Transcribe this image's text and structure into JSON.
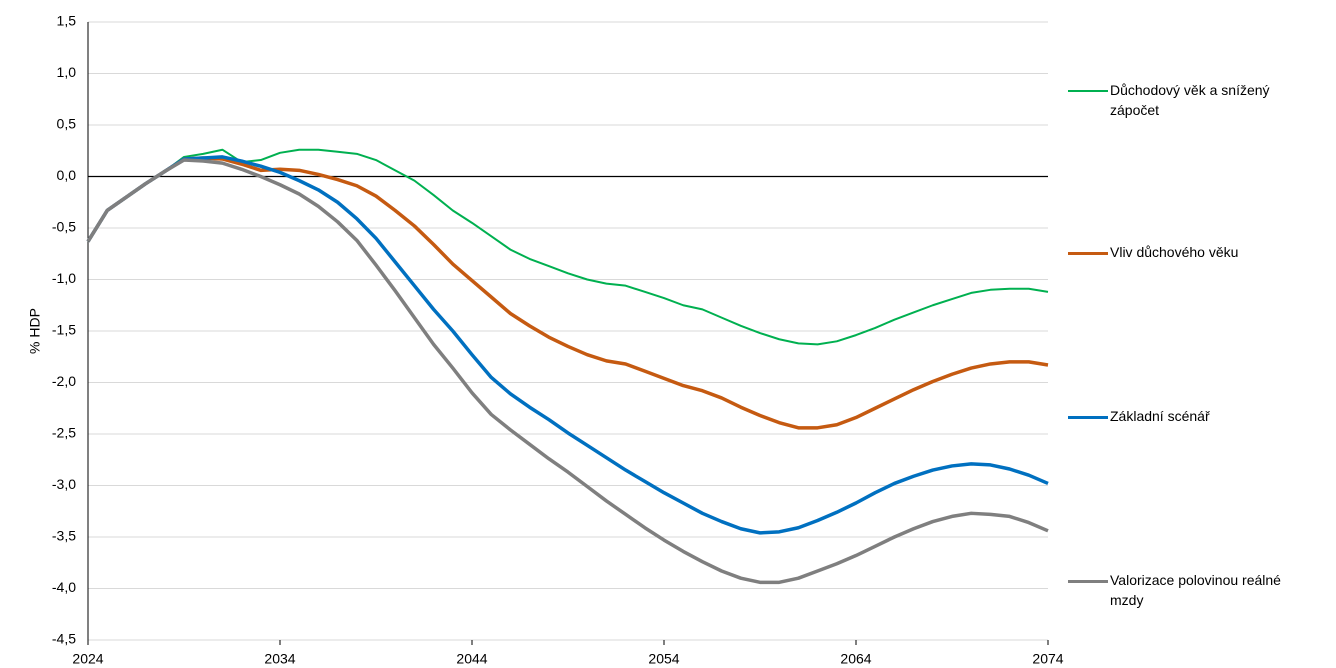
{
  "chart_data": {
    "type": "line",
    "y_label": "% HDP",
    "x": [
      2024,
      2025,
      2026,
      2027,
      2028,
      2029,
      2030,
      2031,
      2032,
      2033,
      2034,
      2035,
      2036,
      2037,
      2038,
      2039,
      2040,
      2041,
      2042,
      2043,
      2044,
      2045,
      2046,
      2047,
      2048,
      2049,
      2050,
      2051,
      2052,
      2053,
      2054,
      2055,
      2056,
      2057,
      2058,
      2059,
      2060,
      2061,
      2062,
      2063,
      2064,
      2065,
      2066,
      2067,
      2068,
      2069,
      2070,
      2071,
      2072,
      2073,
      2074
    ],
    "xlim": [
      2024,
      2074
    ],
    "xticks": [
      2024,
      2034,
      2044,
      2054,
      2064,
      2074
    ],
    "ylim": [
      -4.5,
      1.5
    ],
    "yticks": [
      {
        "value": 1.5,
        "label": "1,5"
      },
      {
        "value": 1,
        "label": "1,0"
      },
      {
        "value": 0.5,
        "label": "0,5"
      },
      {
        "value": 0,
        "label": "0,0"
      },
      {
        "value": -0.5,
        "label": "-0,5"
      },
      {
        "value": -1,
        "label": "-1,0"
      },
      {
        "value": -1.5,
        "label": "-1,5"
      },
      {
        "value": -2,
        "label": "-2,0"
      },
      {
        "value": -2.5,
        "label": "-2,5"
      },
      {
        "value": -3,
        "label": "-3,0"
      },
      {
        "value": -3.5,
        "label": "-3,5"
      },
      {
        "value": -4,
        "label": "-4,0"
      },
      {
        "value": -4.5,
        "label": "-4,5"
      }
    ],
    "grid": true,
    "legend": "right",
    "series": [
      {
        "name": "Důchodový věk a snížený zápočet",
        "color": "#00b050",
        "values": [
          -0.63,
          -0.33,
          -0.2,
          -0.07,
          0.05,
          0.19,
          0.22,
          0.26,
          0.14,
          0.16,
          0.23,
          0.26,
          0.26,
          0.24,
          0.22,
          0.16,
          0.06,
          -0.04,
          -0.18,
          -0.33,
          -0.45,
          -0.58,
          -0.71,
          -0.8,
          -0.87,
          -0.94,
          -1,
          -1.04,
          -1.06,
          -1.12,
          -1.18,
          -1.25,
          -1.29,
          -1.37,
          -1.45,
          -1.52,
          -1.58,
          -1.62,
          -1.63,
          -1.6,
          -1.54,
          -1.47,
          -1.39,
          -1.32,
          -1.25,
          -1.19,
          -1.13,
          -1.1,
          -1.09,
          -1.09,
          -1.12
        ]
      },
      {
        "name": "Vliv důchového věku",
        "color": "#c55a11",
        "values": [
          -0.63,
          -0.33,
          -0.2,
          -0.07,
          0.05,
          0.17,
          0.18,
          0.17,
          0.12,
          0.06,
          0.07,
          0.06,
          0.02,
          -0.03,
          -0.09,
          -0.19,
          -0.33,
          -0.48,
          -0.66,
          -0.85,
          -1.01,
          -1.17,
          -1.33,
          -1.45,
          -1.56,
          -1.65,
          -1.73,
          -1.79,
          -1.82,
          -1.89,
          -1.96,
          -2.03,
          -2.08,
          -2.15,
          -2.24,
          -2.32,
          -2.39,
          -2.44,
          -2.44,
          -2.41,
          -2.34,
          -2.25,
          -2.16,
          -2.07,
          -1.99,
          -1.92,
          -1.86,
          -1.82,
          -1.8,
          -1.8,
          -1.83
        ]
      },
      {
        "name": "Základní scénář",
        "color": "#0070c0",
        "values": [
          -0.63,
          -0.33,
          -0.2,
          -0.07,
          0.05,
          0.17,
          0.18,
          0.19,
          0.15,
          0.1,
          0.04,
          -0.04,
          -0.13,
          -0.25,
          -0.41,
          -0.6,
          -0.83,
          -1.06,
          -1.29,
          -1.5,
          -1.73,
          -1.95,
          -2.11,
          -2.24,
          -2.36,
          -2.49,
          -2.61,
          -2.73,
          -2.85,
          -2.96,
          -3.07,
          -3.17,
          -3.27,
          -3.35,
          -3.42,
          -3.46,
          -3.45,
          -3.41,
          -3.34,
          -3.26,
          -3.17,
          -3.07,
          -2.98,
          -2.91,
          -2.85,
          -2.81,
          -2.79,
          -2.8,
          -2.84,
          -2.9,
          -2.98
        ]
      },
      {
        "name": "Valorizace polovinou reálné mzdy",
        "color": "#7f7f7f",
        "values": [
          -0.63,
          -0.33,
          -0.2,
          -0.07,
          0.05,
          0.16,
          0.15,
          0.13,
          0.07,
          0,
          -0.08,
          -0.17,
          -0.29,
          -0.44,
          -0.62,
          -0.86,
          -1.11,
          -1.37,
          -1.63,
          -1.86,
          -2.1,
          -2.31,
          -2.46,
          -2.6,
          -2.74,
          -2.87,
          -3.01,
          -3.15,
          -3.28,
          -3.41,
          -3.53,
          -3.64,
          -3.74,
          -3.83,
          -3.9,
          -3.94,
          -3.94,
          -3.9,
          -3.83,
          -3.76,
          -3.68,
          -3.59,
          -3.5,
          -3.42,
          -3.35,
          -3.3,
          -3.27,
          -3.28,
          -3.3,
          -3.36,
          -3.44
        ]
      }
    ]
  }
}
